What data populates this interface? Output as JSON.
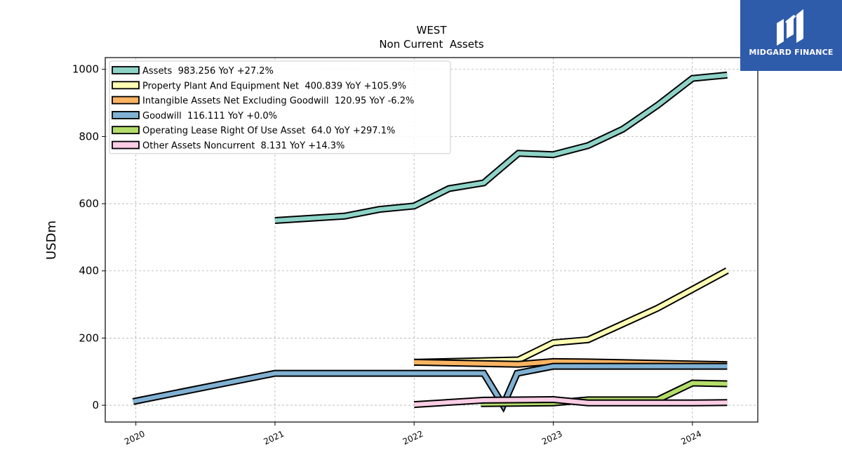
{
  "brand": {
    "name": "MIDGARD FINANCE",
    "bg": "#2f5bab",
    "icon": "midgard-logo-icon"
  },
  "chart_data": {
    "type": "line",
    "title": "WEST",
    "subtitle": "Non Current  Assets",
    "xlabel": "",
    "ylabel": "USDm",
    "xlim": [
      2019.78,
      2024.47
    ],
    "ylim": [
      -50,
      1035
    ],
    "xticks": [
      2020,
      2021,
      2022,
      2023,
      2024
    ],
    "xtick_labels": [
      "2020",
      "2021",
      "2022",
      "2023",
      "2024"
    ],
    "yticks": [
      0,
      200,
      400,
      600,
      800,
      1000
    ],
    "ytick_labels": [
      "0",
      "200",
      "400",
      "600",
      "800",
      "1000"
    ],
    "grid": true,
    "legend_position": "top-left",
    "series": [
      {
        "name": "Assets  983.256 YoY +27.2%",
        "color": "#8dd3c7",
        "x": [
          2021.0,
          2021.5,
          2021.75,
          2022.0,
          2022.25,
          2022.5,
          2022.75,
          2023.0,
          2023.25,
          2023.5,
          2023.75,
          2024.0,
          2024.25
        ],
        "y": [
          550,
          563,
          583,
          593,
          645,
          662,
          750,
          746,
          773,
          822,
          893,
          973,
          983
        ]
      },
      {
        "name": "Property Plant And Equipment Net  400.839 YoY +105.9%",
        "color": "#ffffb3",
        "x": [
          2022.0,
          2022.75,
          2023.0,
          2023.25,
          2023.5,
          2023.75,
          2024.0,
          2024.25
        ],
        "y": [
          128,
          135,
          186,
          195,
          242,
          289,
          345,
          401
        ]
      },
      {
        "name": "Intangible Assets Net Excluding Goodwill  120.95 YoY -6.2%",
        "color": "#fdb462",
        "x": [
          2022.0,
          2022.75,
          2023.0,
          2023.25,
          2024.25
        ],
        "y": [
          128,
          122,
          130,
          129,
          121
        ]
      },
      {
        "name": "Goodwill  116.111 YoY +0.0%",
        "color": "#80b1d3",
        "x": [
          2019.98,
          2021.0,
          2022.0,
          2022.5,
          2022.64,
          2022.74,
          2023.0,
          2023.25,
          2024.25
        ],
        "y": [
          11,
          95,
          95,
          95,
          0,
          95,
          116,
          116,
          116
        ]
      },
      {
        "name": "Operating Lease Right Of Use Asset  64.0 YoY +297.1%",
        "color": "#b3de69",
        "x": [
          2022.48,
          2023.0,
          2023.25,
          2023.75,
          2024.0,
          2024.25
        ],
        "y": [
          5,
          7,
          16,
          16,
          66,
          64
        ]
      },
      {
        "name": "Other Assets Noncurrent  8.131 YoY +14.3%",
        "color": "#fccde5",
        "x": [
          2022.0,
          2022.5,
          2023.0,
          2023.25,
          2023.5,
          2024.0,
          2024.25
        ],
        "y": [
          2,
          15,
          17,
          7,
          7,
          7,
          8
        ]
      }
    ]
  }
}
